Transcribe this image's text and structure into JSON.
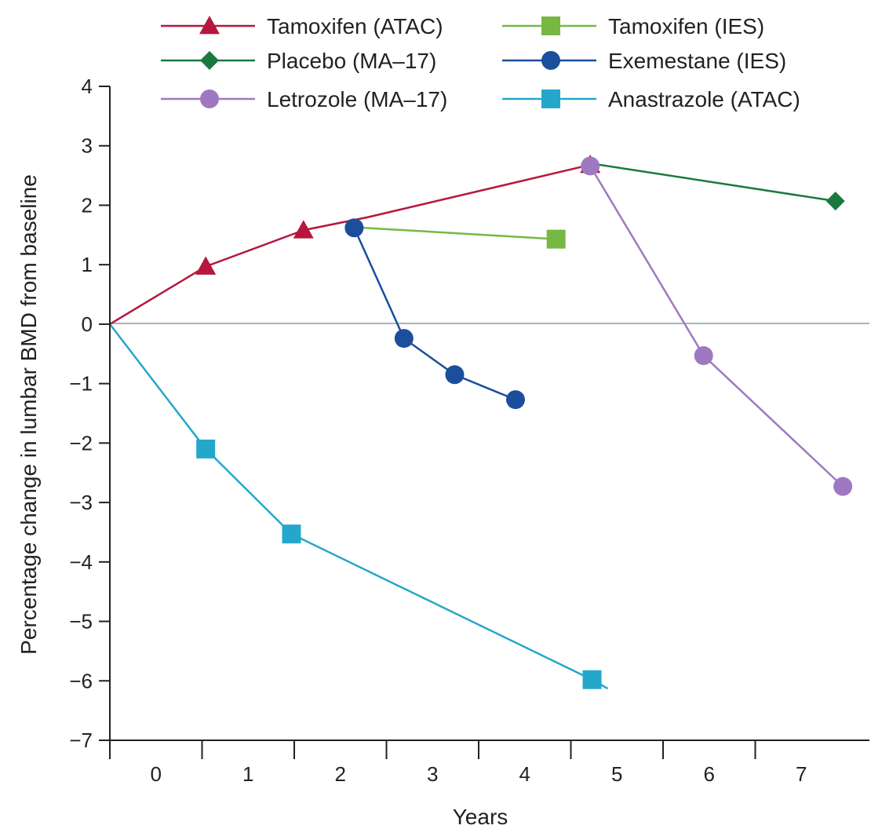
{
  "chart_data": {
    "type": "line",
    "xlabel": "Years",
    "ylabel": "Percentage change in lumbar BMD from baseline",
    "xlim": [
      -0.5,
      7.5
    ],
    "ylim": [
      -7,
      4
    ],
    "x_ticks": [
      0,
      1,
      2,
      3,
      4,
      5,
      6,
      7
    ],
    "y_ticks": [
      4,
      3,
      2,
      1,
      0,
      -1,
      -2,
      -3,
      -4,
      -5,
      -6,
      -7
    ],
    "y_tick_labels": [
      "4",
      "3",
      "2",
      "1",
      "0",
      "−1",
      "−2",
      "−3",
      "−4",
      "−5",
      "−6",
      "−7"
    ],
    "grid": false,
    "zero_line": true,
    "legend_position": "top",
    "series": [
      {
        "name": "Tamoxifen (ATAC)",
        "color": "#b5173d",
        "marker": "triangle",
        "x": [
          -0.5,
          0.54,
          1.6,
          2.3,
          4.71
        ],
        "y": [
          0,
          0.97,
          1.58,
          1.8,
          2.68
        ],
        "marked": [
          false,
          true,
          true,
          false,
          true
        ]
      },
      {
        "name": "Tamoxifen (IES)",
        "color": "#77b843",
        "marker": "square",
        "x": [
          2.15,
          4.34
        ],
        "y": [
          1.63,
          1.43
        ],
        "marked": [
          false,
          true
        ]
      },
      {
        "name": "Placebo (MA–17)",
        "color": "#1a7a3d",
        "marker": "diamond",
        "x": [
          4.73,
          7.37
        ],
        "y": [
          2.7,
          2.07
        ],
        "marked": [
          false,
          true
        ]
      },
      {
        "name": "Exemestane (IES)",
        "color": "#1b4e9b",
        "marker": "circle",
        "x": [
          2.15,
          2.69,
          3.24,
          3.9
        ],
        "y": [
          1.62,
          -0.24,
          -0.85,
          -1.27
        ],
        "marked": [
          true,
          true,
          true,
          true
        ]
      },
      {
        "name": "Letrozole (MA–17)",
        "color": "#9e79c1",
        "marker": "circle",
        "x": [
          4.71,
          5.94,
          7.45
        ],
        "y": [
          2.66,
          -0.53,
          -2.73
        ],
        "marked": [
          true,
          true,
          true
        ]
      },
      {
        "name": "Anastrazole (ATAC)",
        "color": "#25a7cb",
        "marker": "square",
        "x": [
          -0.5,
          0.54,
          1.47,
          4.73,
          4.9
        ],
        "y": [
          0,
          -2.1,
          -3.53,
          -5.98,
          -6.13
        ],
        "marked": [
          false,
          true,
          true,
          true,
          false
        ]
      }
    ],
    "zero_line_color": "#a6b4c3"
  }
}
